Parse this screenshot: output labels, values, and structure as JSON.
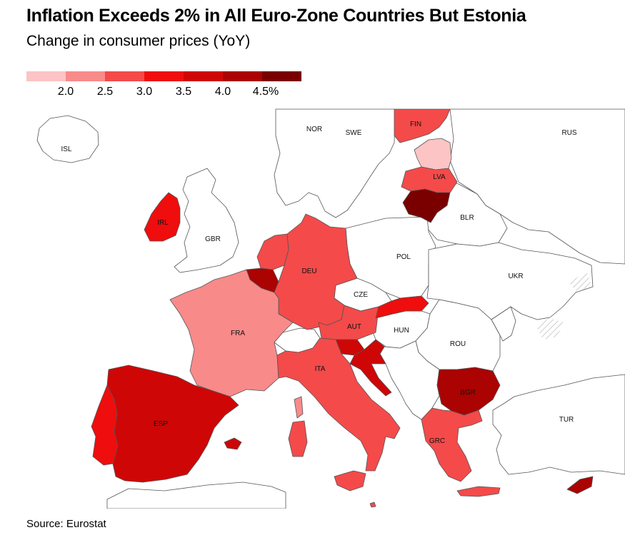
{
  "title": "Inflation Exceeds 2% in All Euro-Zone Countries But Estonia",
  "subtitle": "Change in consumer prices (YoY)",
  "legend": {
    "colors": [
      "#fcc4c4",
      "#f98a8a",
      "#f44a4a",
      "#ef0d0d",
      "#cf0606",
      "#ab0202",
      "#7a0000"
    ],
    "ticks": [
      "2.0",
      "2.5",
      "3.0",
      "3.5",
      "4.0",
      "4.5%"
    ]
  },
  "source": "Source: Eurostat",
  "map_labels": {
    "ISL": "ISL",
    "NOR": "NOR",
    "SWE": "SWE",
    "FIN": "FIN",
    "RUS": "RUS",
    "LVA": "LVA",
    "IRL": "IRL",
    "GBR": "GBR",
    "BLR": "BLR",
    "POL": "POL",
    "DEU": "DEU",
    "UKR": "UKR",
    "CZE": "CZE",
    "FRA": "FRA",
    "AUT": "AUT",
    "HUN": "HUN",
    "ROU": "ROU",
    "ITA": "ITA",
    "BGR": "BGR",
    "ESP": "ESP",
    "TUR": "TUR",
    "GRC": "GRC"
  },
  "fills": {
    "non_eurozone": "#ffffff",
    "border": "#555555",
    "FIN": "#f44a4a",
    "EST": "#fcc4c4",
    "LVA": "#f44a4a",
    "LTU": "#7a0000",
    "IRL": "#ef0d0d",
    "DEU": "#f44a4a",
    "NLD": "#f44a4a",
    "BEL": "#ab0202",
    "LUX": "#cf0606",
    "FRA": "#f98a8a",
    "SVK": "#ef0d0d",
    "AUT": "#f44a4a",
    "SVN": "#cf0606",
    "HRV": "#cf0606",
    "ITA": "#f44a4a",
    "ESP": "#cf0606",
    "PRT": "#ef0d0d",
    "GRC": "#f44a4a",
    "CYP": "#ab0202",
    "MLT": "#f44a4a",
    "BGR": "#ab0202"
  }
}
